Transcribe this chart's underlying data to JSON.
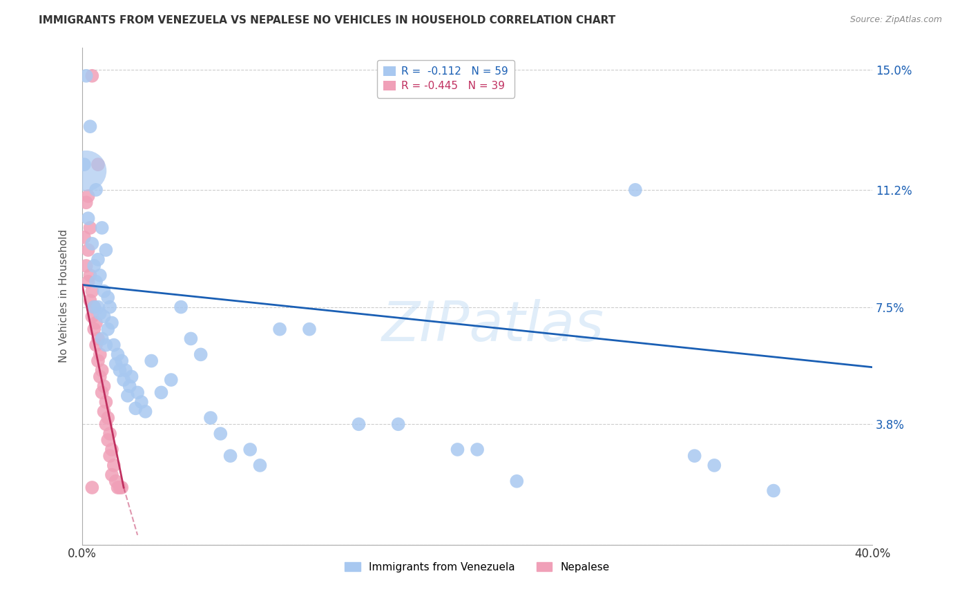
{
  "title": "IMMIGRANTS FROM VENEZUELA VS NEPALESE NO VEHICLES IN HOUSEHOLD CORRELATION CHART",
  "source": "Source: ZipAtlas.com",
  "ylabel": "No Vehicles in Household",
  "legend_blue_r": "R =  -0.112",
  "legend_blue_n": "N = 59",
  "legend_pink_r": "R = -0.445",
  "legend_pink_n": "N = 39",
  "legend_label_blue": "Immigrants from Venezuela",
  "legend_label_pink": "Nepalese",
  "watermark": "ZIPatlas",
  "blue_color": "#a8c8f0",
  "pink_color": "#f0a0b8",
  "blue_line_color": "#1a5fb4",
  "pink_line_color": "#c0306080",
  "background_color": "#ffffff",
  "blue_scatter": [
    [
      0.002,
      0.148
    ],
    [
      0.004,
      0.132
    ],
    [
      0.001,
      0.12
    ],
    [
      0.007,
      0.112
    ],
    [
      0.003,
      0.103
    ],
    [
      0.01,
      0.1
    ],
    [
      0.005,
      0.095
    ],
    [
      0.012,
      0.093
    ],
    [
      0.008,
      0.09
    ],
    [
      0.006,
      0.088
    ],
    [
      0.009,
      0.085
    ],
    [
      0.007,
      0.083
    ],
    [
      0.011,
      0.08
    ],
    [
      0.013,
      0.078
    ],
    [
      0.006,
      0.075
    ],
    [
      0.008,
      0.075
    ],
    [
      0.014,
      0.075
    ],
    [
      0.009,
      0.073
    ],
    [
      0.011,
      0.072
    ],
    [
      0.015,
      0.07
    ],
    [
      0.013,
      0.068
    ],
    [
      0.01,
      0.065
    ],
    [
      0.016,
      0.063
    ],
    [
      0.012,
      0.063
    ],
    [
      0.018,
      0.06
    ],
    [
      0.02,
      0.058
    ],
    [
      0.017,
      0.057
    ],
    [
      0.022,
      0.055
    ],
    [
      0.019,
      0.055
    ],
    [
      0.025,
      0.053
    ],
    [
      0.021,
      0.052
    ],
    [
      0.024,
      0.05
    ],
    [
      0.028,
      0.048
    ],
    [
      0.023,
      0.047
    ],
    [
      0.03,
      0.045
    ],
    [
      0.027,
      0.043
    ],
    [
      0.032,
      0.042
    ],
    [
      0.035,
      0.058
    ],
    [
      0.04,
      0.048
    ],
    [
      0.045,
      0.052
    ],
    [
      0.05,
      0.075
    ],
    [
      0.055,
      0.065
    ],
    [
      0.06,
      0.06
    ],
    [
      0.065,
      0.04
    ],
    [
      0.07,
      0.035
    ],
    [
      0.075,
      0.028
    ],
    [
      0.085,
      0.03
    ],
    [
      0.09,
      0.025
    ],
    [
      0.1,
      0.068
    ],
    [
      0.115,
      0.068
    ],
    [
      0.14,
      0.038
    ],
    [
      0.16,
      0.038
    ],
    [
      0.19,
      0.03
    ],
    [
      0.2,
      0.03
    ],
    [
      0.22,
      0.02
    ],
    [
      0.28,
      0.112
    ],
    [
      0.31,
      0.028
    ],
    [
      0.32,
      0.025
    ],
    [
      0.35,
      0.017
    ]
  ],
  "blue_large_point": [
    0.002,
    0.118
  ],
  "pink_scatter": [
    [
      0.005,
      0.148
    ],
    [
      0.008,
      0.12
    ],
    [
      0.003,
      0.11
    ],
    [
      0.002,
      0.108
    ],
    [
      0.004,
      0.1
    ],
    [
      0.001,
      0.097
    ],
    [
      0.003,
      0.093
    ],
    [
      0.002,
      0.088
    ],
    [
      0.004,
      0.085
    ],
    [
      0.003,
      0.083
    ],
    [
      0.005,
      0.08
    ],
    [
      0.004,
      0.077
    ],
    [
      0.006,
      0.075
    ],
    [
      0.005,
      0.072
    ],
    [
      0.007,
      0.07
    ],
    [
      0.006,
      0.068
    ],
    [
      0.008,
      0.065
    ],
    [
      0.007,
      0.063
    ],
    [
      0.009,
      0.06
    ],
    [
      0.008,
      0.058
    ],
    [
      0.01,
      0.055
    ],
    [
      0.009,
      0.053
    ],
    [
      0.011,
      0.05
    ],
    [
      0.01,
      0.048
    ],
    [
      0.012,
      0.045
    ],
    [
      0.011,
      0.042
    ],
    [
      0.013,
      0.04
    ],
    [
      0.012,
      0.038
    ],
    [
      0.014,
      0.035
    ],
    [
      0.013,
      0.033
    ],
    [
      0.015,
      0.03
    ],
    [
      0.014,
      0.028
    ],
    [
      0.016,
      0.025
    ],
    [
      0.015,
      0.022
    ],
    [
      0.017,
      0.02
    ],
    [
      0.018,
      0.018
    ],
    [
      0.005,
      0.018
    ],
    [
      0.019,
      0.018
    ],
    [
      0.02,
      0.018
    ]
  ],
  "xmin": 0.0,
  "xmax": 0.4,
  "ymin": 0.0,
  "ymax": 0.157,
  "ytick_positions": [
    0.0,
    0.038,
    0.075,
    0.112,
    0.15
  ],
  "ytick_labels": [
    "",
    "3.8%",
    "7.5%",
    "11.2%",
    "15.0%"
  ],
  "blue_line": [
    0.0,
    0.4,
    0.082,
    0.056
  ],
  "pink_line": [
    0.0,
    0.021,
    0.082,
    0.018
  ],
  "pink_dash": [
    0.021,
    0.028,
    0.018,
    0.003
  ]
}
